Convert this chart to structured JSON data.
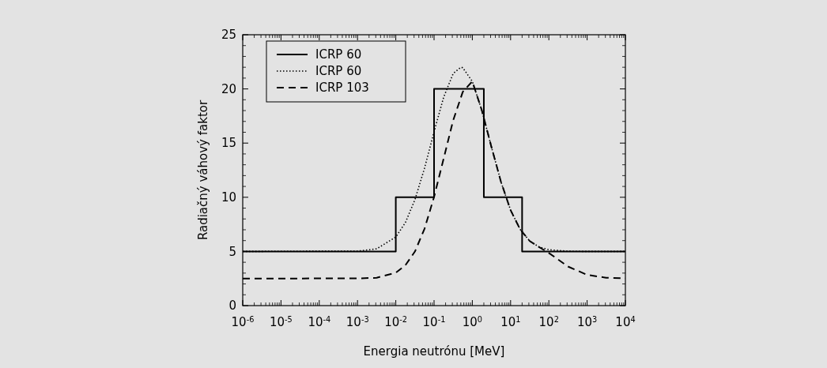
{
  "chart_data": {
    "type": "line",
    "xlabel": "Energia neutrónu [MeV]",
    "ylabel": "Radiačný váhový faktor",
    "log": "x",
    "xlim": [
      1e-06,
      10000
    ],
    "ylim": [
      0,
      25
    ],
    "xticks": [
      {
        "value": 1e-06,
        "label": "10$^{-6}$"
      },
      {
        "value": 1e-05,
        "label": "10$^{-5}$"
      },
      {
        "value": 0.0001,
        "label": "10$^{-4}$"
      },
      {
        "value": 0.001,
        "label": "10$^{-3}$"
      },
      {
        "value": 0.01,
        "label": "10$^{-2}$"
      },
      {
        "value": 0.1,
        "label": "10$^{-1}$"
      },
      {
        "value": 1,
        "label": "10$^{0}$"
      },
      {
        "value": 10,
        "label": "10$^{1}$"
      },
      {
        "value": 100,
        "label": "10$^{2}$"
      },
      {
        "value": 1000,
        "label": "10$^{3}$"
      },
      {
        "value": 10000,
        "label": "10$^{4}$"
      }
    ],
    "yticks": [
      0,
      5,
      10,
      15,
      20,
      25
    ],
    "grid": false,
    "legend": "top left",
    "marker": "none",
    "series": [
      {
        "name": "ICRP 60",
        "type": "step",
        "color": "#000000",
        "line_style": "solid",
        "x": [
          1e-06,
          0.01,
          0.1,
          2,
          20,
          10000
        ],
        "values": [
          5,
          10,
          20,
          10,
          5,
          5
        ]
      },
      {
        "name": "ICRP 60",
        "color": "#000000",
        "line_style": "dotted",
        "x": [
          1e-06,
          0.001,
          0.00316,
          0.01,
          0.0178,
          0.0316,
          0.0562,
          0.1,
          0.178,
          0.316,
          0.5,
          0.562,
          1,
          1.78,
          3.16,
          5.62,
          10,
          17.8,
          31.6,
          56.2,
          100,
          316,
          1000,
          10000
        ],
        "values": [
          5,
          5.03,
          5.24,
          6.33,
          7.66,
          9.77,
          12.67,
          16.04,
          19.23,
          21.42,
          22,
          21.96,
          20.69,
          18,
          14.64,
          11.41,
          8.81,
          7.03,
          5.96,
          5.41,
          5.16,
          5.02,
          5,
          5
        ]
      },
      {
        "name": "ICRP 103",
        "color": "#000000",
        "line_style": "dashed",
        "x": [
          1e-06,
          0.001,
          0.00316,
          0.01,
          0.0178,
          0.0316,
          0.0562,
          0.1,
          0.178,
          0.316,
          0.562,
          1,
          1.78,
          3.16,
          5.62,
          10,
          17.8,
          31.6,
          50,
          100,
          316,
          1000,
          3160,
          10000
        ],
        "values": [
          2.5,
          2.51,
          2.57,
          3.03,
          3.72,
          4.99,
          7.08,
          10.02,
          13.57,
          17.1,
          19.72,
          20.7,
          18,
          14.64,
          11.41,
          8.81,
          7.03,
          5.96,
          5.5,
          4.86,
          3.61,
          2.84,
          2.57,
          2.51
        ]
      }
    ]
  }
}
